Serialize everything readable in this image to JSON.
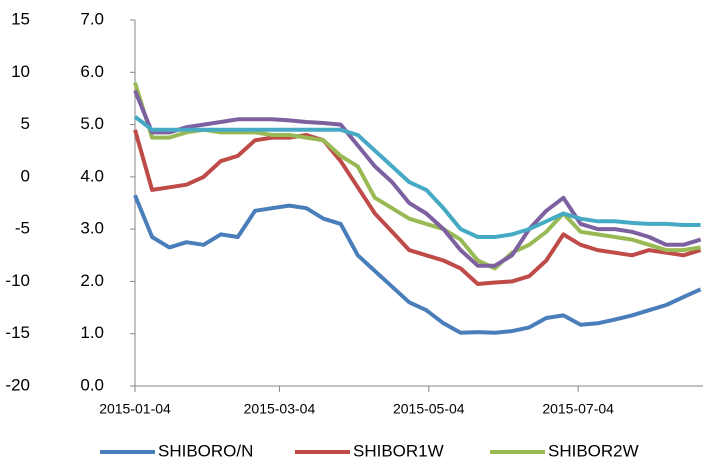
{
  "chart_data": {
    "type": "line",
    "x": [
      "2015-01-04",
      "2015-01-11",
      "2015-01-18",
      "2015-01-25",
      "2015-02-01",
      "2015-02-08",
      "2015-02-15",
      "2015-02-22",
      "2015-03-01",
      "2015-03-08",
      "2015-03-15",
      "2015-03-22",
      "2015-03-29",
      "2015-04-05",
      "2015-04-12",
      "2015-04-19",
      "2015-04-26",
      "2015-05-03",
      "2015-05-10",
      "2015-05-17",
      "2015-05-24",
      "2015-05-31",
      "2015-06-07",
      "2015-06-14",
      "2015-06-21",
      "2015-06-28",
      "2015-07-05",
      "2015-07-12",
      "2015-07-19",
      "2015-07-26",
      "2015-08-02",
      "2015-08-09",
      "2015-08-16",
      "2015-08-23"
    ],
    "series": [
      {
        "name": "SHIBORO/N",
        "color": "#4a7ebb",
        "values": [
          3.65,
          2.85,
          2.65,
          2.75,
          2.7,
          2.9,
          2.85,
          3.35,
          3.4,
          3.45,
          3.4,
          3.2,
          3.1,
          2.5,
          2.2,
          1.9,
          1.6,
          1.45,
          1.2,
          1.02,
          1.03,
          1.02,
          1.05,
          1.12,
          1.3,
          1.35,
          1.17,
          1.2,
          1.27,
          1.35,
          1.45,
          1.55,
          1.7,
          1.85
        ]
      },
      {
        "name": "SHIBOR1W",
        "color": "#be4b48",
        "values": [
          4.9,
          3.75,
          3.8,
          3.85,
          4.0,
          4.3,
          4.4,
          4.7,
          4.75,
          4.75,
          4.8,
          4.7,
          4.3,
          3.8,
          3.3,
          2.95,
          2.6,
          2.5,
          2.4,
          2.25,
          1.95,
          1.98,
          2.0,
          2.1,
          2.4,
          2.9,
          2.7,
          2.6,
          2.55,
          2.5,
          2.6,
          2.55,
          2.5,
          2.6
        ]
      },
      {
        "name": "SHIBOR2W",
        "color": "#98b954",
        "values": [
          5.8,
          4.75,
          4.75,
          4.85,
          4.9,
          4.85,
          4.85,
          4.85,
          4.8,
          4.8,
          4.75,
          4.7,
          4.4,
          4.2,
          3.6,
          3.4,
          3.2,
          3.1,
          3.0,
          2.8,
          2.4,
          2.25,
          2.55,
          2.7,
          2.95,
          3.3,
          2.95,
          2.9,
          2.85,
          2.8,
          2.7,
          2.6,
          2.6,
          2.65
        ]
      },
      {
        "color": "#7d60a0",
        "values": [
          5.65,
          4.85,
          4.85,
          4.95,
          5.0,
          5.05,
          5.1,
          5.1,
          5.1,
          5.08,
          5.05,
          5.03,
          5.0,
          4.6,
          4.2,
          3.9,
          3.5,
          3.3,
          3.0,
          2.6,
          2.3,
          2.3,
          2.5,
          3.0,
          3.35,
          3.6,
          3.1,
          3.0,
          3.0,
          2.95,
          2.85,
          2.7,
          2.7,
          2.8
        ]
      },
      {
        "color": "#46aac5",
        "values": [
          5.15,
          4.9,
          4.9,
          4.9,
          4.9,
          4.9,
          4.9,
          4.9,
          4.9,
          4.9,
          4.9,
          4.9,
          4.9,
          4.8,
          4.5,
          4.2,
          3.9,
          3.75,
          3.4,
          3.0,
          2.85,
          2.85,
          2.9,
          3.0,
          3.15,
          3.3,
          3.2,
          3.15,
          3.15,
          3.12,
          3.1,
          3.1,
          3.08,
          3.08
        ]
      }
    ],
    "xlim": [
      "2015-01-04",
      "2015-08-24"
    ],
    "xticks": [
      "2015-01-04",
      "2015-03-04",
      "2015-05-04",
      "2015-07-04"
    ],
    "ylim": [
      0,
      7
    ],
    "yticks": [
      {
        "value": 0,
        "label": "0.0"
      },
      {
        "value": 1,
        "label": "1.0"
      },
      {
        "value": 2,
        "label": "2.0"
      },
      {
        "value": 3,
        "label": "3.0"
      },
      {
        "value": 4,
        "label": "4.0"
      },
      {
        "value": 5,
        "label": "5.0"
      },
      {
        "value": 6,
        "label": "6.0"
      },
      {
        "value": 7,
        "label": "7.0"
      }
    ],
    "y2lim": [
      -20,
      15
    ],
    "y2ticks": [
      -20,
      -15,
      -10,
      -5,
      0,
      5,
      10,
      15
    ]
  }
}
